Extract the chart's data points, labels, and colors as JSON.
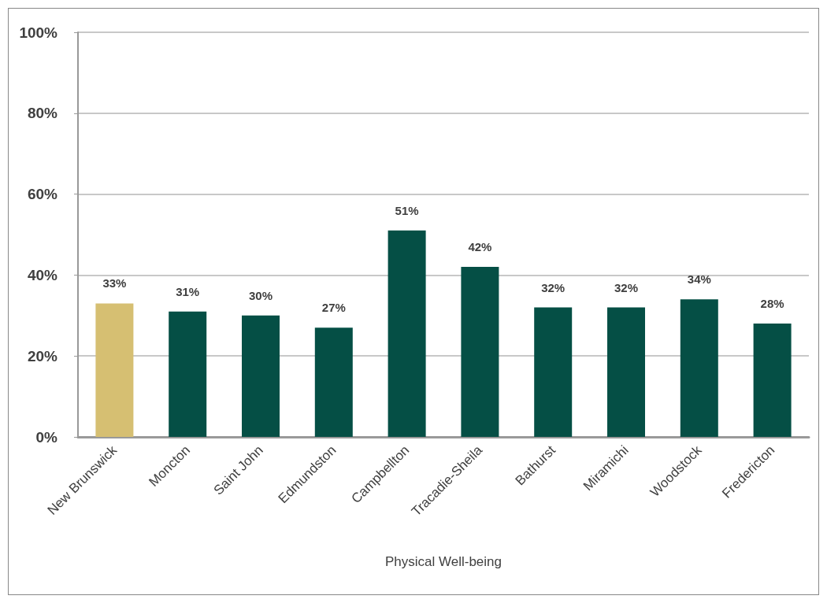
{
  "chart_data": {
    "type": "bar",
    "xlabel": "Physical Well-being",
    "categories": [
      "New Brunswick",
      "Moncton",
      "Saint John",
      "Edmundston",
      "Campbellton",
      "Tracadie-Sheila",
      "Bathurst",
      "Miramichi",
      "Woodstock",
      "Fredericton"
    ],
    "values": [
      33,
      31,
      30,
      27,
      51,
      42,
      32,
      32,
      34,
      28
    ],
    "value_labels": [
      "33%",
      "31%",
      "30%",
      "27%",
      "51%",
      "42%",
      "32%",
      "32%",
      "34%",
      "28%"
    ],
    "colors": [
      "#d6bf72",
      "#054f45",
      "#054f45",
      "#054f45",
      "#054f45",
      "#054f45",
      "#054f45",
      "#054f45",
      "#054f45",
      "#054f45"
    ],
    "ylim": [
      0,
      100
    ],
    "yticks": [
      {
        "value": 0,
        "label": "0%"
      },
      {
        "value": 20,
        "label": "20%"
      },
      {
        "value": 40,
        "label": "40%"
      },
      {
        "value": 60,
        "label": "60%"
      },
      {
        "value": 80,
        "label": "80%"
      },
      {
        "value": 100,
        "label": "100%"
      }
    ],
    "grid": "y"
  }
}
